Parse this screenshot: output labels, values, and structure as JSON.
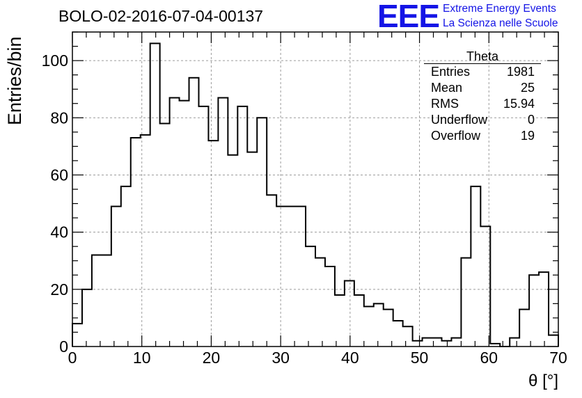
{
  "title": "BOLO-02-2016-07-04-00137",
  "logo": {
    "mark": "EEE",
    "line1": "Extreme Energy Events",
    "line2": "La Scienza nelle Scuole",
    "color": "#1414e6"
  },
  "stats_box": {
    "title": "Theta",
    "rows": [
      {
        "label": "Entries",
        "value": "1981"
      },
      {
        "label": "Mean",
        "value": "25"
      },
      {
        "label": "RMS",
        "value": "15.94"
      },
      {
        "label": "Underflow",
        "value": "0"
      },
      {
        "label": "Overflow",
        "value": "19"
      }
    ]
  },
  "chart_data": {
    "type": "histogram",
    "xlabel": "θ [°]",
    "ylabel": "Entries/bin",
    "xlim": [
      0,
      70
    ],
    "ylim": [
      0,
      110
    ],
    "grid": true,
    "x_ticks": [
      0,
      10,
      20,
      30,
      40,
      50,
      60,
      70
    ],
    "y_ticks": [
      0,
      20,
      40,
      60,
      80,
      100
    ],
    "bin_edges": [
      0,
      1.4,
      2.8,
      4.2,
      5.6,
      7.0,
      8.4,
      9.8,
      11.2,
      12.6,
      14.0,
      15.4,
      16.8,
      18.2,
      19.6,
      21.0,
      22.4,
      23.8,
      25.2,
      26.6,
      28.0,
      29.4,
      30.8,
      32.2,
      33.6,
      35.0,
      36.4,
      37.8,
      39.2,
      40.6,
      42.0,
      43.4,
      44.8,
      46.2,
      47.6,
      49.0,
      50.4,
      51.8,
      53.2,
      54.6,
      56.0,
      57.4,
      58.8,
      60.2,
      61.6,
      63.0,
      64.4,
      65.8,
      67.2,
      68.6,
      70.0
    ],
    "values": [
      8,
      20,
      32,
      32,
      49,
      56,
      73,
      74,
      106,
      78,
      87,
      86,
      94,
      84,
      72,
      87,
      67,
      84,
      68,
      80,
      53,
      49,
      49,
      49,
      35,
      31,
      28,
      18,
      23,
      18,
      14,
      15,
      13,
      9,
      7,
      2,
      3,
      3,
      2,
      3,
      31,
      56,
      42,
      1,
      0,
      3,
      13,
      25,
      26,
      4
    ],
    "line_color": "#000000"
  }
}
